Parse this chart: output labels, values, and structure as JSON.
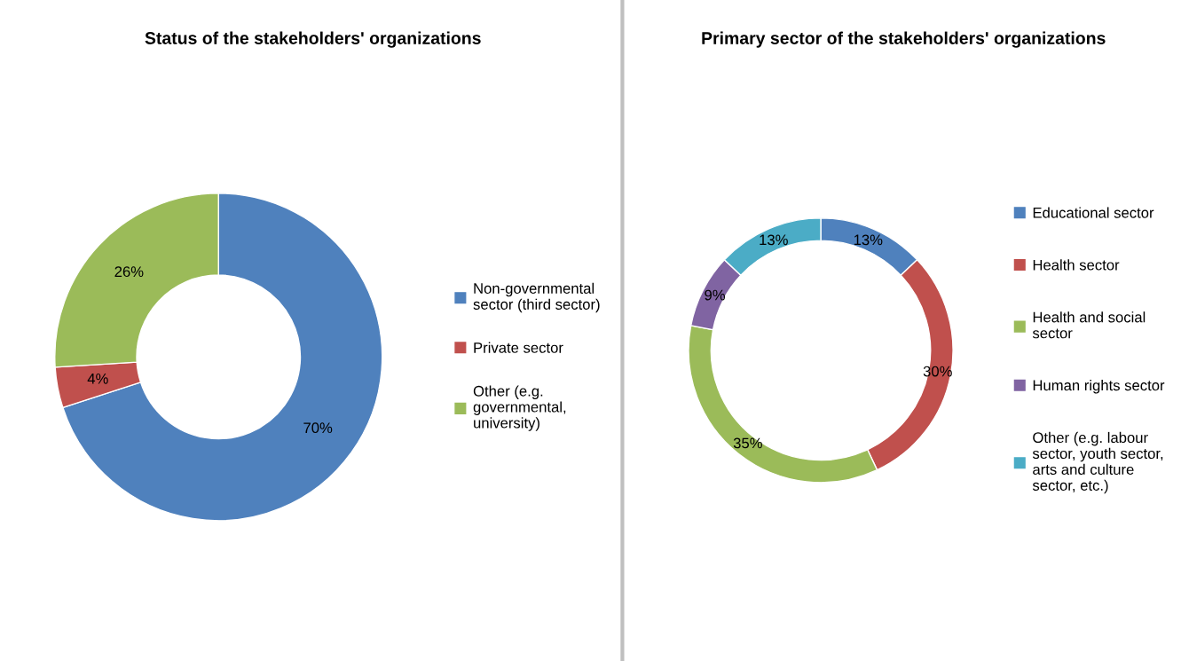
{
  "chart_data": [
    {
      "type": "donut",
      "title": "Status of the stakeholders' organizations",
      "categories": [
        "Non-governmental sector (third sector)",
        "Private sector",
        "Other (e.g. governmental, university)"
      ],
      "values": [
        70,
        4,
        26
      ],
      "value_labels": [
        "70%",
        "4%",
        "26%"
      ],
      "colors": [
        "#4f81bd",
        "#c0504d",
        "#9bbb59"
      ],
      "legend": "right"
    },
    {
      "type": "donut",
      "title": "Primary sector of the stakeholders' organizations",
      "categories": [
        "Educational sector",
        "Health sector",
        "Health and social sector",
        "Human rights sector",
        "Other (e.g. labour sector, youth sector, arts and culture sector, etc.)"
      ],
      "values": [
        13,
        30,
        35,
        9,
        13
      ],
      "value_labels": [
        "13%",
        "30%",
        "35%",
        "9%",
        "13%"
      ],
      "colors": [
        "#4f81bd",
        "#c0504d",
        "#9bbb59",
        "#8064a2",
        "#4bacc6"
      ],
      "legend": "right"
    }
  ]
}
